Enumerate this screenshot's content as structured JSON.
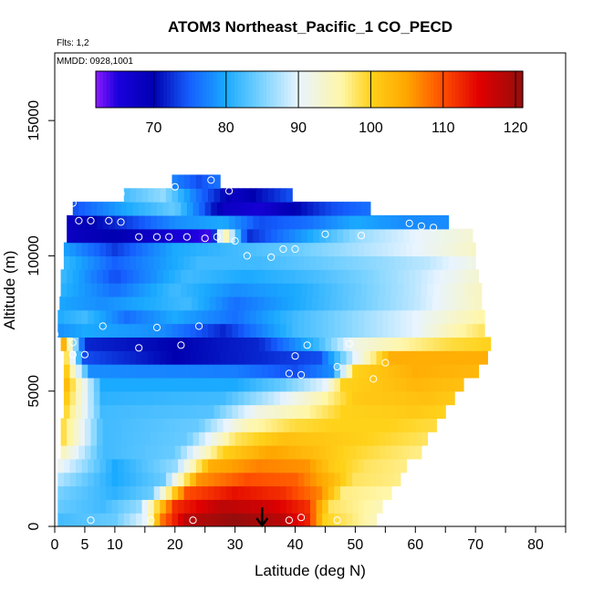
{
  "chart_data": {
    "type": "heatmap",
    "title": "ATOM3 Northeast_Pacific_1 CO_PECD",
    "flights_label": "Flts: 1,2",
    "dates_label": "MMDD: 0928,1001",
    "xlabel": "Latitude (deg N)",
    "ylabel": "Altitude (m)",
    "xlim": [
      0,
      85
    ],
    "ylim": [
      0,
      17500
    ],
    "x_ticks": [
      0,
      5,
      10,
      20,
      30,
      40,
      50,
      60,
      70,
      80
    ],
    "x_minor_ticks": [
      15,
      25,
      35,
      45,
      55,
      65,
      75,
      85
    ],
    "y_ticks": [
      0,
      5000,
      10000,
      15000
    ],
    "colorbar": {
      "range": [
        62,
        121
      ],
      "ticks": [
        70,
        80,
        90,
        100,
        110,
        120
      ],
      "palette": [
        {
          "v": 62,
          "c": "#8c1aff"
        },
        {
          "v": 65,
          "c": "#1a00dd"
        },
        {
          "v": 70,
          "c": "#0000b0"
        },
        {
          "v": 75,
          "c": "#1560ff"
        },
        {
          "v": 80,
          "c": "#1aaaff"
        },
        {
          "v": 85,
          "c": "#7cd3ff"
        },
        {
          "v": 90,
          "c": "#e8f4ff"
        },
        {
          "v": 96,
          "c": "#fff6a8"
        },
        {
          "v": 100,
          "c": "#ffd21a"
        },
        {
          "v": 105,
          "c": "#ffa500"
        },
        {
          "v": 110,
          "c": "#ff4d00"
        },
        {
          "v": 115,
          "c": "#e00000"
        },
        {
          "v": 121,
          "c": "#950d0d"
        }
      ]
    },
    "arrow_latitude": 34.5,
    "layers": [
      {
        "alt": 250,
        "x0": 0.5,
        "x1": 53.5,
        "pts": [
          [
            0,
            82
          ],
          [
            10,
            84
          ],
          [
            15,
            90
          ],
          [
            18,
            108
          ],
          [
            22,
            118
          ],
          [
            30,
            121
          ],
          [
            38,
            118
          ],
          [
            42,
            113
          ],
          [
            45,
            100
          ],
          [
            50,
            97
          ],
          [
            53,
            95
          ]
        ]
      },
      {
        "alt": 750,
        "x0": 0.5,
        "x1": 54.5,
        "pts": [
          [
            0,
            84
          ],
          [
            8,
            82
          ],
          [
            14,
            86
          ],
          [
            20,
            112
          ],
          [
            28,
            118
          ],
          [
            36,
            116
          ],
          [
            42,
            112
          ],
          [
            46,
            98
          ],
          [
            52,
            96
          ],
          [
            54,
            95
          ]
        ]
      },
      {
        "alt": 1250,
        "x0": 0.5,
        "x1": 56,
        "pts": [
          [
            0,
            85
          ],
          [
            10,
            81
          ],
          [
            16,
            84
          ],
          [
            22,
            110
          ],
          [
            30,
            114
          ],
          [
            38,
            112
          ],
          [
            44,
            107
          ],
          [
            48,
            97
          ],
          [
            55,
            96
          ]
        ]
      },
      {
        "alt": 1750,
        "x0": 0.5,
        "x1": 57.5,
        "pts": [
          [
            0,
            88
          ],
          [
            10,
            80
          ],
          [
            18,
            84
          ],
          [
            24,
            106
          ],
          [
            32,
            110
          ],
          [
            40,
            109
          ],
          [
            46,
            103
          ],
          [
            50,
            98
          ],
          [
            57,
            97
          ]
        ]
      },
      {
        "alt": 2250,
        "x0": 0.5,
        "x1": 58.5,
        "pts": [
          [
            0,
            92
          ],
          [
            10,
            80
          ],
          [
            20,
            86
          ],
          [
            26,
            104
          ],
          [
            34,
            107
          ],
          [
            42,
            106
          ],
          [
            46,
            101
          ],
          [
            52,
            98
          ],
          [
            58,
            97
          ]
        ]
      },
      {
        "alt": 2750,
        "x0": 1,
        "x1": 61,
        "pts": [
          [
            1,
            95
          ],
          [
            8,
            82
          ],
          [
            20,
            84
          ],
          [
            28,
            100
          ],
          [
            36,
            105
          ],
          [
            44,
            102
          ],
          [
            48,
            100
          ],
          [
            60,
            97
          ]
        ]
      },
      {
        "alt": 3250,
        "x0": 1,
        "x1": 62,
        "pts": [
          [
            1,
            100
          ],
          [
            8,
            82
          ],
          [
            22,
            84
          ],
          [
            30,
            98
          ],
          [
            38,
            102
          ],
          [
            46,
            101
          ],
          [
            52,
            100
          ],
          [
            62,
            98
          ]
        ]
      },
      {
        "alt": 3750,
        "x0": 1,
        "x1": 63.5,
        "pts": [
          [
            1,
            100
          ],
          [
            8,
            82
          ],
          [
            24,
            84
          ],
          [
            32,
            95
          ],
          [
            40,
            99
          ],
          [
            46,
            100
          ],
          [
            56,
            100
          ],
          [
            63,
            99
          ]
        ]
      },
      {
        "alt": 4250,
        "x0": 1.5,
        "x1": 65,
        "pts": [
          [
            1,
            102
          ],
          [
            8,
            82
          ],
          [
            26,
            83
          ],
          [
            34,
            92
          ],
          [
            42,
            96
          ],
          [
            48,
            100
          ],
          [
            60,
            101
          ],
          [
            65,
            100
          ]
        ]
      },
      {
        "alt": 4750,
        "x0": 1.5,
        "x1": 66.5,
        "pts": [
          [
            1,
            104
          ],
          [
            8,
            81
          ],
          [
            28,
            82
          ],
          [
            36,
            88
          ],
          [
            44,
            95
          ],
          [
            50,
            101
          ],
          [
            62,
            102
          ],
          [
            66,
            101
          ]
        ]
      },
      {
        "alt": 5250,
        "x0": 1.5,
        "x1": 68,
        "pts": [
          [
            1,
            106
          ],
          [
            8,
            80
          ],
          [
            30,
            80
          ],
          [
            38,
            84
          ],
          [
            45,
            90
          ],
          [
            48,
            100
          ],
          [
            60,
            103
          ],
          [
            68,
            102
          ]
        ]
      },
      {
        "alt": 5750,
        "x0": 1.5,
        "x1": 70.5,
        "pts": [
          [
            1,
            106
          ],
          [
            6,
            78
          ],
          [
            30,
            77
          ],
          [
            40,
            74
          ],
          [
            46,
            78
          ],
          [
            50,
            100
          ],
          [
            60,
            104
          ],
          [
            70,
            103
          ]
        ]
      },
      {
        "alt": 6250,
        "x0": 1.5,
        "x1": 72,
        "pts": [
          [
            1,
            106
          ],
          [
            5,
            74
          ],
          [
            20,
            70
          ],
          [
            34,
            72
          ],
          [
            44,
            74
          ],
          [
            50,
            90
          ],
          [
            56,
            104
          ],
          [
            66,
            104
          ],
          [
            72,
            104
          ]
        ]
      },
      {
        "alt": 6750,
        "x0": 1,
        "x1": 72.5,
        "pts": [
          [
            1,
            108
          ],
          [
            5,
            72
          ],
          [
            20,
            70
          ],
          [
            34,
            72
          ],
          [
            44,
            82
          ],
          [
            50,
            92
          ],
          [
            58,
            96
          ],
          [
            66,
            99
          ],
          [
            72,
            100
          ]
        ]
      },
      {
        "alt": 7250,
        "x0": 0.5,
        "x1": 71.5,
        "pts": [
          [
            0,
            78
          ],
          [
            5,
            80
          ],
          [
            18,
            78
          ],
          [
            28,
            72
          ],
          [
            40,
            82
          ],
          [
            50,
            86
          ],
          [
            60,
            90
          ],
          [
            66,
            95
          ],
          [
            71,
            98
          ]
        ]
      },
      {
        "alt": 7750,
        "x0": 0.5,
        "x1": 71.5,
        "pts": [
          [
            0,
            80
          ],
          [
            5,
            82
          ],
          [
            12,
            76
          ],
          [
            20,
            80
          ],
          [
            30,
            76
          ],
          [
            40,
            82
          ],
          [
            50,
            86
          ],
          [
            60,
            90
          ],
          [
            71,
            96
          ]
        ]
      },
      {
        "alt": 8250,
        "x0": 0.8,
        "x1": 71,
        "pts": [
          [
            0,
            80
          ],
          [
            8,
            78
          ],
          [
            15,
            80
          ],
          [
            22,
            82
          ],
          [
            30,
            76
          ],
          [
            40,
            80
          ],
          [
            50,
            84
          ],
          [
            60,
            88
          ],
          [
            70,
            94
          ]
        ]
      },
      {
        "alt": 8750,
        "x0": 1,
        "x1": 71,
        "pts": [
          [
            1,
            81
          ],
          [
            10,
            76
          ],
          [
            20,
            82
          ],
          [
            30,
            78
          ],
          [
            40,
            80
          ],
          [
            50,
            84
          ],
          [
            60,
            88
          ],
          [
            70,
            94
          ]
        ]
      },
      {
        "alt": 9250,
        "x0": 1,
        "x1": 70.5,
        "pts": [
          [
            1,
            82
          ],
          [
            10,
            74
          ],
          [
            22,
            82
          ],
          [
            32,
            80
          ],
          [
            42,
            82
          ],
          [
            52,
            85
          ],
          [
            60,
            88
          ],
          [
            70,
            93
          ]
        ]
      },
      {
        "alt": 9750,
        "x0": 1.5,
        "x1": 70,
        "pts": [
          [
            1,
            82
          ],
          [
            10,
            75
          ],
          [
            24,
            82
          ],
          [
            34,
            82
          ],
          [
            44,
            84
          ],
          [
            54,
            86
          ],
          [
            62,
            88
          ],
          [
            70,
            92
          ]
        ]
      },
      {
        "alt": 10250,
        "x0": 1.5,
        "x1": 70,
        "pts": [
          [
            1,
            80
          ],
          [
            10,
            73
          ],
          [
            20,
            80
          ],
          [
            30,
            82
          ],
          [
            40,
            84
          ],
          [
            50,
            87
          ],
          [
            60,
            90
          ],
          [
            70,
            94
          ]
        ]
      },
      {
        "alt": 10750,
        "x0": 2,
        "x1": 69.5,
        "pts": [
          [
            2,
            68
          ],
          [
            10,
            70
          ],
          [
            20,
            66
          ],
          [
            26,
            64
          ],
          [
            28,
            98
          ],
          [
            32,
            72
          ],
          [
            40,
            78
          ],
          [
            50,
            86
          ],
          [
            60,
            90
          ],
          [
            69,
            93
          ]
        ]
      },
      {
        "alt": 11250,
        "x0": 2,
        "x1": 65.5,
        "pts": [
          [
            2,
            68
          ],
          [
            10,
            72
          ],
          [
            20,
            78
          ],
          [
            28,
            80
          ],
          [
            34,
            74
          ],
          [
            42,
            76
          ],
          [
            50,
            80
          ],
          [
            58,
            78
          ],
          [
            65,
            78
          ]
        ]
      },
      {
        "alt": 11750,
        "x0": 3,
        "x1": 52.5,
        "pts": [
          [
            3,
            74
          ],
          [
            12,
            80
          ],
          [
            20,
            84
          ],
          [
            28,
            68
          ],
          [
            34,
            66
          ],
          [
            40,
            70
          ],
          [
            46,
            74
          ],
          [
            52,
            76
          ]
        ]
      },
      {
        "alt": 12250,
        "x0": 11.5,
        "x1": 39.5,
        "pts": [
          [
            11,
            82
          ],
          [
            18,
            86
          ],
          [
            24,
            76
          ],
          [
            30,
            68
          ],
          [
            36,
            72
          ],
          [
            39,
            74
          ]
        ]
      },
      {
        "alt": 12750,
        "x0": 19.5,
        "x1": 27.5,
        "pts": [
          [
            19,
            78
          ],
          [
            24,
            74
          ],
          [
            27,
            76
          ]
        ]
      }
    ],
    "observations": [
      [
        6,
        230
      ],
      [
        16,
        230
      ],
      [
        23,
        230
      ],
      [
        39,
        230
      ],
      [
        41,
        330
      ],
      [
        47,
        230
      ],
      [
        40,
        6300
      ],
      [
        39,
        5650
      ],
      [
        41,
        5600
      ],
      [
        47,
        5900
      ],
      [
        53,
        5450
      ],
      [
        55,
        6050
      ],
      [
        3,
        6350
      ],
      [
        5,
        6350
      ],
      [
        3,
        6800
      ],
      [
        14,
        6600
      ],
      [
        21,
        6700
      ],
      [
        42,
        6700
      ],
      [
        49,
        6750
      ],
      [
        0,
        7100
      ],
      [
        8,
        7400
      ],
      [
        17,
        7350
      ],
      [
        24,
        7400
      ],
      [
        14,
        10700
      ],
      [
        17,
        10700
      ],
      [
        19,
        10700
      ],
      [
        22,
        10700
      ],
      [
        25,
        10650
      ],
      [
        27,
        10700
      ],
      [
        30,
        10550
      ],
      [
        32,
        10000
      ],
      [
        36,
        9950
      ],
      [
        38,
        10250
      ],
      [
        40,
        10250
      ],
      [
        45,
        10800
      ],
      [
        51,
        10750
      ],
      [
        4,
        11300
      ],
      [
        6,
        11300
      ],
      [
        9,
        11300
      ],
      [
        11,
        11250
      ],
      [
        59,
        11200
      ],
      [
        61,
        11100
      ],
      [
        63,
        11050
      ],
      [
        3,
        11950
      ],
      [
        11,
        12300
      ],
      [
        20,
        12550
      ],
      [
        26,
        12800
      ],
      [
        29,
        12400
      ]
    ]
  }
}
